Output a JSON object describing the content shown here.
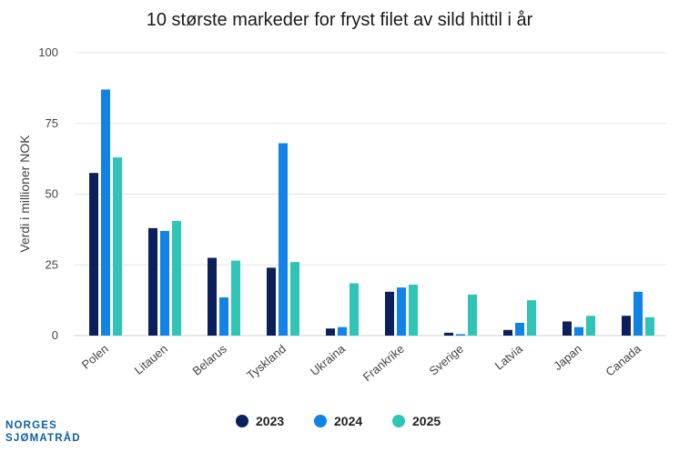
{
  "chart_data": {
    "type": "bar",
    "title": "10 største markeder for fryst filet av sild hittil i år",
    "ylabel": "Verdi i millioner NOK",
    "xlabel": "",
    "ylim": [
      0,
      100
    ],
    "yticks": [
      "0",
      "25",
      "50",
      "75",
      "100"
    ],
    "categories": [
      "Polen",
      "Litauen",
      "Belarus",
      "Tyskland",
      "Ukraina",
      "Frankrike",
      "Sverige",
      "Latvia",
      "Japan",
      "Canada"
    ],
    "series": [
      {
        "name": "2023",
        "color": "#0b1f5c",
        "values": [
          57.5,
          38,
          27.5,
          24,
          2.5,
          15.5,
          1,
          2,
          5,
          7
        ]
      },
      {
        "name": "2024",
        "color": "#1182e6",
        "values": [
          87,
          37,
          13.5,
          68,
          3,
          17,
          0.5,
          4.5,
          3,
          15.5
        ]
      },
      {
        "name": "2025",
        "color": "#2ec4b6",
        "values": [
          63,
          40.5,
          26.5,
          26,
          18.5,
          18,
          14.5,
          12.5,
          7,
          6.5
        ]
      }
    ],
    "grid": true,
    "legend_position": "bottom"
  },
  "branding": {
    "logo_line1": "NORGES",
    "logo_line2": "SJØMATRÅD"
  }
}
